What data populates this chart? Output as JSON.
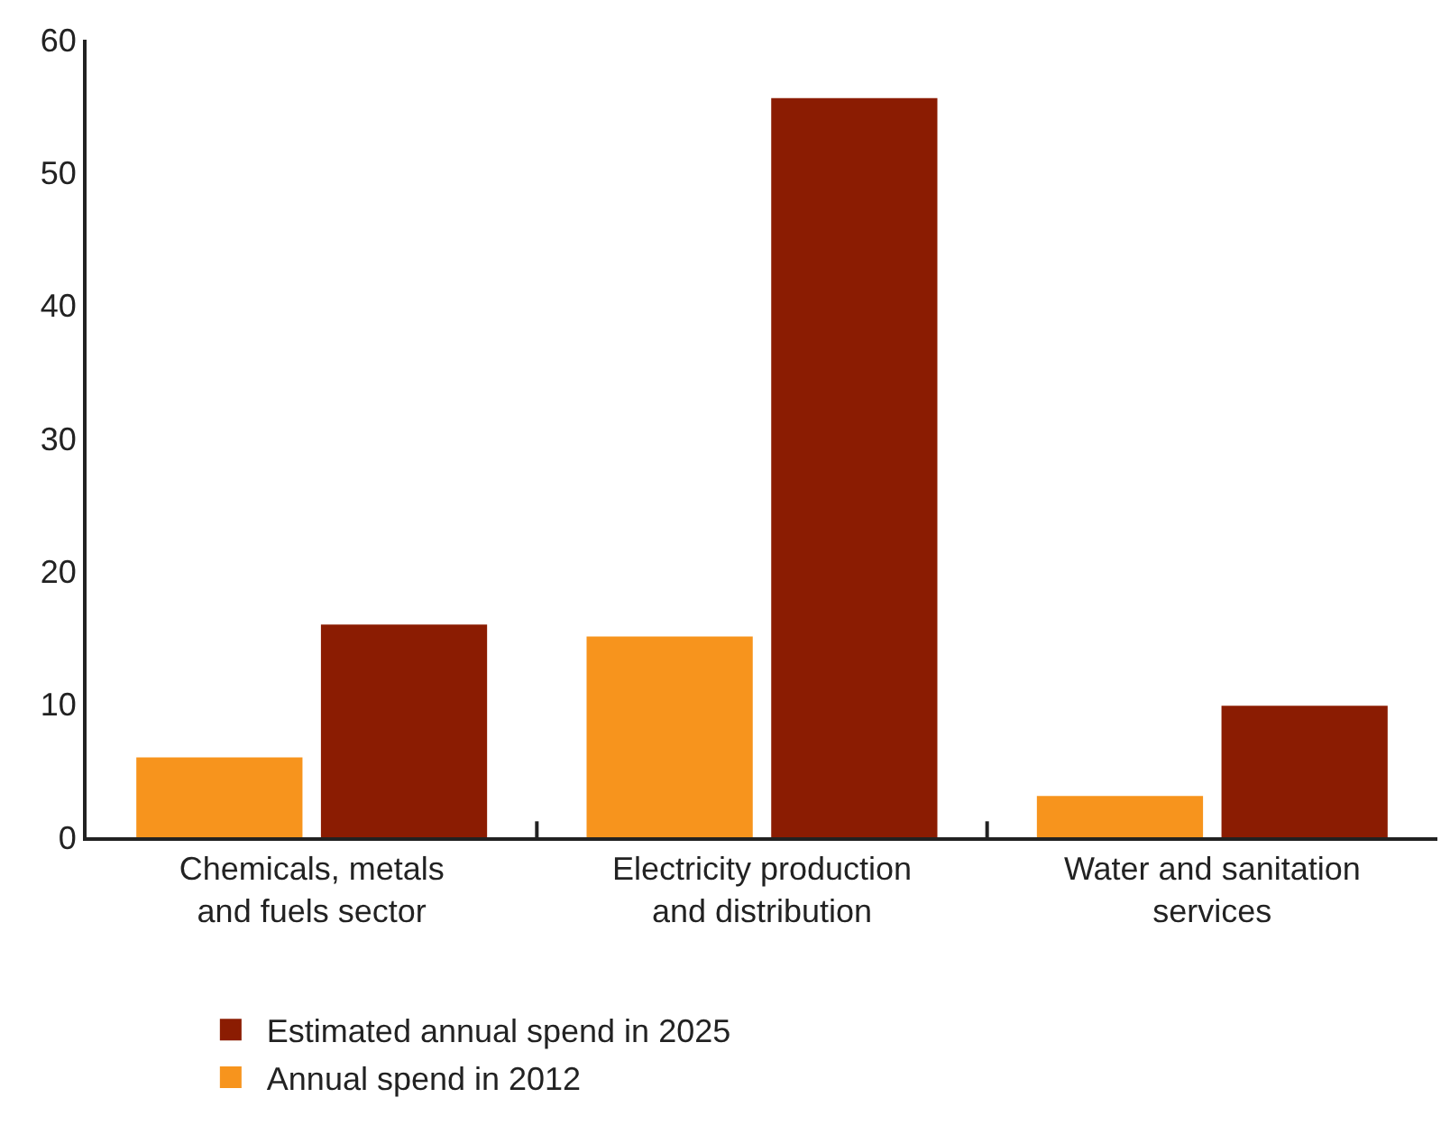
{
  "chart_data": {
    "type": "bar",
    "categories": [
      "Chemicals, metals\nand fuels sector",
      "Electricity production\nand distribution",
      "Water and sanitation\nservices"
    ],
    "series": [
      {
        "name": "Annual spend in 2012",
        "color": "#f7941d",
        "values": [
          6.0,
          15.1,
          3.1
        ]
      },
      {
        "name": "Estimated annual spend in 2025",
        "color": "#8b1c02",
        "values": [
          16.0,
          55.6,
          9.9
        ]
      }
    ],
    "ylim": [
      0,
      60
    ],
    "yticks": [
      0,
      10,
      20,
      30,
      40,
      50,
      60
    ],
    "legend": "bottom"
  }
}
